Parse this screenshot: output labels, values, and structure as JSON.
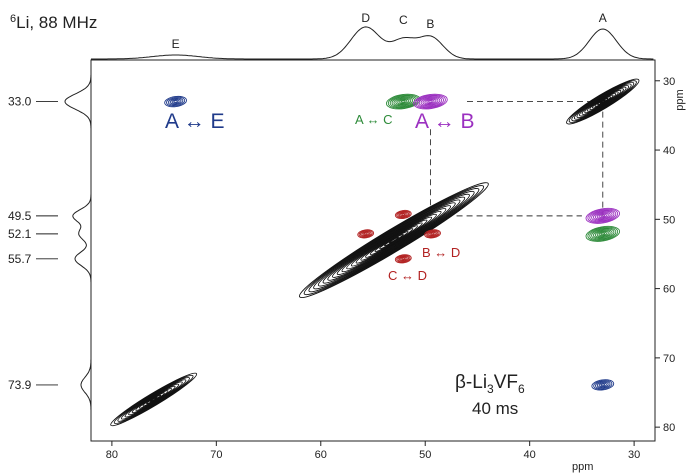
{
  "chart_data": {
    "type": "2D NMR contour plot",
    "title": "6Li, 88 MHz",
    "title_parts": {
      "isotope_mass": "6",
      "element_and_field": "Li, 88 MHz"
    },
    "sample_label_parts": {
      "prefix": "β-Li",
      "sub1": "3",
      "mid": "VF",
      "sub2": "6"
    },
    "mixing_time": "40 ms",
    "x_axis": {
      "label": "ppm",
      "range": [
        82,
        28
      ],
      "ticks": [
        80,
        70,
        60,
        50,
        40,
        30
      ],
      "tick_labels": [
        "80",
        "70",
        "60",
        "50",
        "40",
        "30"
      ]
    },
    "y_axis": {
      "label": "ppm",
      "range": [
        27,
        82
      ],
      "ticks": [
        30,
        40,
        50,
        60,
        70,
        80
      ],
      "tick_labels": [
        "30",
        "40",
        "50",
        "60",
        "70",
        "80"
      ]
    },
    "projection_top": {
      "peaks": [
        {
          "label": "E",
          "ppm": 73.9
        },
        {
          "label": "D",
          "ppm": 55.7
        },
        {
          "label": "C",
          "ppm": 52.1
        },
        {
          "label": "B",
          "ppm": 49.5
        },
        {
          "label": "A",
          "ppm": 33.0
        }
      ]
    },
    "projection_left": {
      "peaks": [
        {
          "label": "33.0",
          "ppm": 33.0
        },
        {
          "label": "49.5",
          "ppm": 49.5
        },
        {
          "label": "52.1",
          "ppm": 52.1
        },
        {
          "label": "55.7",
          "ppm": 55.7
        },
        {
          "label": "73.9",
          "ppm": 73.9
        }
      ]
    },
    "diagonal_peaks": [
      {
        "name": "A",
        "x": 33.0,
        "y": 33.0
      },
      {
        "name": "B-C-D",
        "x": 53.0,
        "y": 53.0
      },
      {
        "name": "E",
        "x": 76.0,
        "y": 76.0
      }
    ],
    "cross_peaks": [
      {
        "pair": "A-E",
        "x": 73.9,
        "y": 33.0,
        "color": "#1f3a8a"
      },
      {
        "pair": "A-E",
        "x": 33.0,
        "y": 73.9,
        "color": "#1f3a8a"
      },
      {
        "pair": "A-C",
        "x": 52.1,
        "y": 33.0,
        "color": "#2e8b3a"
      },
      {
        "pair": "A-B",
        "x": 49.5,
        "y": 33.0,
        "color": "#9b30c0"
      },
      {
        "pair": "A-B",
        "x": 33.0,
        "y": 49.5,
        "color": "#9b30c0"
      },
      {
        "pair": "A-C",
        "x": 33.0,
        "y": 52.1,
        "color": "#2e8b3a"
      },
      {
        "pair": "B-D",
        "x": 55.7,
        "y": 52.1,
        "color": "#b22222"
      },
      {
        "pair": "B-D",
        "x": 52.1,
        "y": 49.3,
        "color": "#b22222"
      },
      {
        "pair": "B-D",
        "x": 49.3,
        "y": 52.1,
        "color": "#b22222"
      },
      {
        "pair": "C-D",
        "x": 52.1,
        "y": 55.7,
        "color": "#b22222"
      }
    ],
    "annotations": [
      {
        "left": "A",
        "arrow": "↔",
        "right": "E",
        "color": "#1f3a8a"
      },
      {
        "left": "A",
        "arrow": "↔",
        "right": "C",
        "color": "#2e8b3a"
      },
      {
        "left": "A",
        "arrow": "↔",
        "right": "B",
        "color": "#9b30c0"
      },
      {
        "left": "B",
        "arrow": "↔",
        "right": "D",
        "color": "#b22222"
      },
      {
        "left": "C",
        "arrow": "↔",
        "right": "D",
        "color": "#b22222"
      }
    ],
    "connectors": [
      {
        "from": [
          46.0,
          33.0
        ],
        "to": [
          33.0,
          33.0
        ]
      },
      {
        "from": [
          33.0,
          33.0
        ],
        "to": [
          33.0,
          49.5
        ]
      },
      {
        "from": [
          49.5,
          37.0
        ],
        "to": [
          49.5,
          48.0
        ]
      },
      {
        "from": [
          47.0,
          49.5
        ],
        "to": [
          35.0,
          49.5
        ]
      }
    ],
    "grid": false
  }
}
